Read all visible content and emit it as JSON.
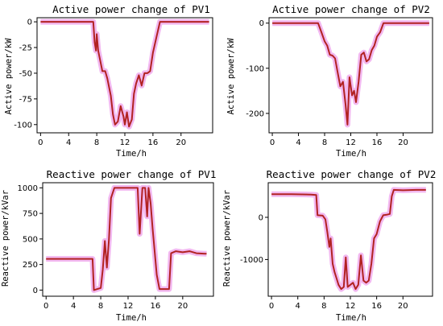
{
  "colors": {
    "line": "#b22222",
    "line_inner": "#cc1f1f",
    "band": "#f2b8f0"
  },
  "chart_data": [
    {
      "type": "line",
      "title": "Active power change of PV1",
      "xlabel": "Time/h",
      "ylabel": "Active power/kW",
      "xlim": [
        -0.5,
        24.5
      ],
      "ylim": [
        -108,
        4
      ],
      "xticks": [
        0,
        4,
        8,
        12,
        16,
        20
      ],
      "yticks": [
        0,
        -25,
        -50,
        -75,
        -100
      ],
      "x": [
        0,
        7.5,
        7.7,
        7.9,
        8.0,
        8.2,
        8.5,
        8.8,
        9.2,
        9.5,
        10.0,
        10.3,
        10.6,
        11.0,
        11.4,
        11.8,
        12.0,
        12.3,
        12.6,
        13.0,
        13.3,
        13.6,
        14.0,
        14.4,
        14.8,
        15.2,
        15.6,
        16.0,
        16.5,
        17.0,
        24
      ],
      "y": [
        0,
        0,
        -20,
        -28,
        -12,
        -28,
        -38,
        -48,
        -48,
        -55,
        -72,
        -90,
        -100,
        -97,
        -82,
        -92,
        -100,
        -88,
        -102,
        -95,
        -70,
        -60,
        -52,
        -62,
        -50,
        -50,
        -48,
        -30,
        -15,
        0,
        0
      ]
    },
    {
      "type": "line",
      "title": "Active power change of PV2",
      "xlabel": "Time/h",
      "ylabel": "Active power/kW",
      "xlim": [
        -0.5,
        24.5
      ],
      "ylim": [
        -243,
        12
      ],
      "xticks": [
        0,
        4,
        8,
        12,
        16,
        20
      ],
      "yticks": [
        0,
        -100,
        -200
      ],
      "x": [
        0,
        7.0,
        7.5,
        8.0,
        8.4,
        8.8,
        9.2,
        9.6,
        10.0,
        10.4,
        10.8,
        11.2,
        11.5,
        11.8,
        12.2,
        12.5,
        12.8,
        13.2,
        13.6,
        14.0,
        14.4,
        14.8,
        15.2,
        15.6,
        16.0,
        16.5,
        17.0,
        24
      ],
      "y": [
        0,
        0,
        -20,
        -40,
        -50,
        -70,
        -72,
        -78,
        -110,
        -140,
        -130,
        -180,
        -225,
        -120,
        -160,
        -150,
        -175,
        -130,
        -70,
        -65,
        -85,
        -80,
        -60,
        -50,
        -30,
        -20,
        0,
        0
      ]
    },
    {
      "type": "line",
      "title": "Reactive power change of PV1",
      "xlabel": "Time/h",
      "ylabel": "Reactive power/kVar",
      "xlim": [
        -0.5,
        24.5
      ],
      "ylim": [
        -60,
        1050
      ],
      "xticks": [
        0,
        4,
        8,
        12,
        16,
        20
      ],
      "yticks": [
        0,
        250,
        500,
        750,
        1000
      ],
      "x": [
        0,
        6.0,
        6.8,
        7.0,
        7.5,
        8.0,
        8.3,
        8.6,
        8.9,
        9.2,
        9.5,
        10.0,
        10.5,
        12.0,
        13.0,
        13.4,
        13.7,
        14.1,
        14.5,
        14.8,
        15.0,
        15.3,
        15.6,
        16.0,
        16.2,
        16.6,
        17.5,
        18.0,
        18.3,
        19.0,
        20.0,
        21.0,
        22.0,
        23.5
      ],
      "y": [
        305,
        305,
        305,
        0,
        10,
        20,
        200,
        480,
        220,
        500,
        900,
        1000,
        1000,
        1000,
        1000,
        1000,
        550,
        1000,
        1000,
        720,
        1000,
        850,
        600,
        300,
        150,
        10,
        10,
        10,
        360,
        380,
        370,
        380,
        360,
        355
      ]
    },
    {
      "type": "line",
      "title": "Reactive power change of PV2",
      "xlabel": "Time/h",
      "ylabel": "Reactive power/kVar",
      "xlim": [
        -0.5,
        24.5
      ],
      "ylim": [
        -1870,
        820
      ],
      "xticks": [
        0,
        4,
        8,
        12,
        16,
        20
      ],
      "yticks": [
        0,
        -1000
      ],
      "x": [
        0,
        3.0,
        6.0,
        6.8,
        7.0,
        7.8,
        8.2,
        8.5,
        8.8,
        9.0,
        9.3,
        9.6,
        9.9,
        10.2,
        10.6,
        11.0,
        11.3,
        11.6,
        12.0,
        12.4,
        12.8,
        13.2,
        13.6,
        14.0,
        14.4,
        14.8,
        15.2,
        15.6,
        16.0,
        16.5,
        17.0,
        17.5,
        18.0,
        18.3,
        18.6,
        20.0,
        22.0,
        23.5
      ],
      "y": [
        550,
        550,
        540,
        530,
        50,
        40,
        -50,
        -350,
        -700,
        -500,
        -1100,
        -1300,
        -1450,
        -1600,
        -1700,
        -1650,
        -950,
        -1650,
        -1600,
        -1550,
        -1700,
        -1600,
        -900,
        -1500,
        -1550,
        -1500,
        -1100,
        -500,
        -400,
        -100,
        50,
        60,
        80,
        500,
        650,
        640,
        650,
        650
      ]
    }
  ]
}
